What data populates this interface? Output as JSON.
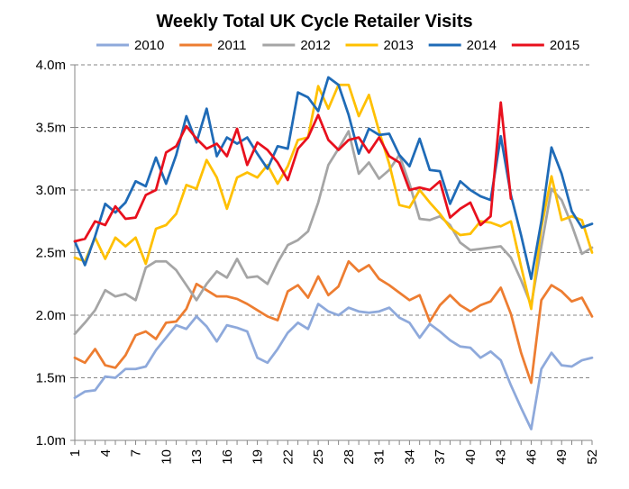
{
  "chart_data": {
    "type": "line",
    "title": "Weekly Total UK Cycle Retailer Visits",
    "xlabel": "",
    "ylabel": "",
    "ylim": [
      1.0,
      4.0
    ],
    "yticks": [
      "1.0m",
      "1.5m",
      "2.0m",
      "2.5m",
      "3.0m",
      "3.5m",
      "4.0m"
    ],
    "ytick_values": [
      1.0,
      1.5,
      2.0,
      2.5,
      3.0,
      3.5,
      4.0
    ],
    "xlim": [
      1,
      52
    ],
    "xticks": [
      "1",
      "4",
      "7",
      "10",
      "13",
      "16",
      "19",
      "22",
      "25",
      "28",
      "31",
      "34",
      "37",
      "40",
      "43",
      "46",
      "49",
      "52"
    ],
    "grid": "horizontal-dashed",
    "legend_position": "top",
    "series": [
      {
        "name": "2010",
        "color": "#8EA9DB",
        "start_week": 1,
        "values": [
          1.34,
          1.39,
          1.4,
          1.51,
          1.5,
          1.57,
          1.57,
          1.59,
          1.72,
          1.82,
          1.92,
          1.89,
          1.99,
          1.91,
          1.79,
          1.92,
          1.9,
          1.87,
          1.66,
          1.62,
          1.73,
          1.86,
          1.94,
          1.89,
          2.09,
          2.03,
          2.0,
          2.06,
          2.03,
          2.02,
          2.03,
          2.06,
          1.98,
          1.94,
          1.82,
          1.93,
          1.87,
          1.8,
          1.75,
          1.74,
          1.66,
          1.71,
          1.64,
          1.44,
          1.26,
          1.09,
          1.57,
          1.7,
          1.6,
          1.59,
          1.64,
          1.66
        ]
      },
      {
        "name": "2011",
        "color": "#ED7D31",
        "start_week": 1,
        "values": [
          1.66,
          1.62,
          1.73,
          1.6,
          1.58,
          1.68,
          1.84,
          1.87,
          1.81,
          1.94,
          1.95,
          2.05,
          2.25,
          2.2,
          2.15,
          2.15,
          2.13,
          2.09,
          2.04,
          1.99,
          1.96,
          2.19,
          2.24,
          2.14,
          2.31,
          2.16,
          2.23,
          2.43,
          2.35,
          2.4,
          2.29,
          2.24,
          2.18,
          2.12,
          2.16,
          1.95,
          2.08,
          2.16,
          2.08,
          2.03,
          2.08,
          2.11,
          2.22,
          2.01,
          1.7,
          1.46,
          2.12,
          2.24,
          2.19,
          2.11,
          2.14,
          1.99
        ]
      },
      {
        "name": "2012",
        "color": "#A5A5A5",
        "start_week": 1,
        "values": [
          1.85,
          1.94,
          2.04,
          2.2,
          2.15,
          2.17,
          2.12,
          2.38,
          2.43,
          2.43,
          2.36,
          2.24,
          2.12,
          2.25,
          2.35,
          2.3,
          2.45,
          2.3,
          2.31,
          2.25,
          2.42,
          2.56,
          2.6,
          2.67,
          2.9,
          3.2,
          3.33,
          3.47,
          3.13,
          3.22,
          3.09,
          3.16,
          3.28,
          3.05,
          2.77,
          2.76,
          2.79,
          2.72,
          2.58,
          2.52,
          2.53,
          2.54,
          2.55,
          2.46,
          2.28,
          2.08,
          2.55,
          3.01,
          2.92,
          2.72,
          2.49,
          2.54
        ]
      },
      {
        "name": "2013",
        "color": "#FFC000",
        "start_week": 1,
        "values": [
          2.46,
          2.43,
          2.62,
          2.45,
          2.62,
          2.55,
          2.62,
          2.41,
          2.69,
          2.72,
          2.81,
          3.04,
          3.01,
          3.24,
          3.1,
          2.85,
          3.1,
          3.14,
          3.1,
          3.2,
          3.05,
          3.19,
          3.4,
          3.42,
          3.83,
          3.65,
          3.84,
          3.84,
          3.59,
          3.76,
          3.47,
          3.21,
          2.88,
          2.86,
          3.0,
          2.9,
          2.81,
          2.7,
          2.64,
          2.65,
          2.75,
          2.74,
          2.71,
          2.75,
          2.39,
          2.05,
          2.7,
          3.11,
          2.76,
          2.79,
          2.76,
          2.5
        ]
      },
      {
        "name": "2014",
        "color": "#1F6BB7",
        "start_week": 1,
        "values": [
          2.59,
          2.4,
          2.63,
          2.89,
          2.82,
          2.9,
          3.07,
          3.03,
          3.26,
          3.05,
          3.28,
          3.59,
          3.38,
          3.65,
          3.27,
          3.42,
          3.37,
          3.42,
          3.29,
          3.17,
          3.35,
          3.33,
          3.78,
          3.74,
          3.63,
          3.9,
          3.84,
          3.6,
          3.29,
          3.49,
          3.44,
          3.45,
          3.28,
          3.19,
          3.41,
          3.16,
          3.15,
          2.89,
          3.07,
          3.0,
          2.95,
          2.92,
          3.43,
          2.96,
          2.64,
          2.29,
          2.75,
          3.34,
          3.13,
          2.83,
          2.7,
          2.73
        ]
      },
      {
        "name": "2015",
        "color": "#E8101D",
        "start_week": 1,
        "values": [
          2.59,
          2.61,
          2.75,
          2.72,
          2.87,
          2.77,
          2.78,
          2.96,
          3.0,
          3.3,
          3.35,
          3.51,
          3.41,
          3.33,
          3.37,
          3.27,
          3.49,
          3.2,
          3.38,
          3.32,
          3.22,
          3.08,
          3.33,
          3.42,
          3.6,
          3.4,
          3.32,
          3.4,
          3.42,
          3.3,
          3.42,
          3.27,
          3.22,
          3.0,
          3.02,
          3.0,
          3.07,
          2.78,
          2.85,
          2.9,
          2.72,
          2.79,
          3.7,
          2.93
        ]
      }
    ]
  }
}
